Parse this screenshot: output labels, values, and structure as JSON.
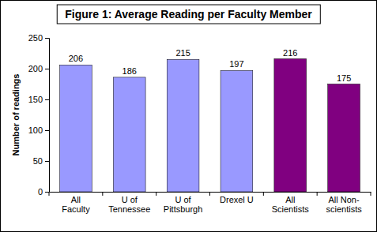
{
  "chart_data": {
    "type": "bar",
    "title": "Figure 1: Average Reading per Faculty Member",
    "y_label": "Number of readings",
    "categories": [
      "All Faculty",
      "U of Tennessee",
      "U of Pittsburgh",
      "Drexel U",
      "All Scientists",
      "All Non-scientists"
    ],
    "values": [
      206,
      186,
      215,
      197,
      216,
      175
    ],
    "colors": [
      "#9999ff",
      "#9999ff",
      "#9999ff",
      "#9999ff",
      "#800080",
      "#800080"
    ],
    "ylim": [
      0,
      250
    ],
    "yticks": [
      0,
      50,
      100,
      150,
      200,
      250
    ],
    "grid": false,
    "data_labels": true
  }
}
